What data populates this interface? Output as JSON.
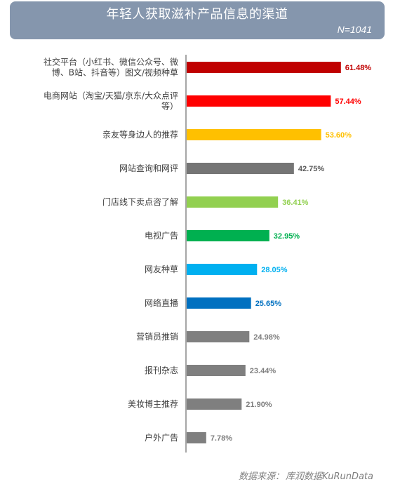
{
  "header": {
    "title": "年轻人获取滋补产品信息的渠道",
    "sample_size": "N=1041"
  },
  "footer": {
    "source_label": "数据来源：",
    "source_value": "库润数据KuRunData"
  },
  "chart_data": {
    "type": "bar",
    "orientation": "horizontal",
    "title": "年轻人获取滋补产品信息的渠道",
    "xlabel": "",
    "ylabel": "",
    "xlim": [
      0,
      70
    ],
    "grid": false,
    "legend": "none",
    "categories": [
      [
        "社交平台（小红书、微信公众号、微",
        "博、B站、抖音等）图文/视频种草"
      ],
      [
        "电商网站（淘宝/天猫/京东/大众点评",
        "等）"
      ],
      [
        "亲友等身边人的推荐"
      ],
      [
        "网站查询和网评"
      ],
      [
        "门店线下卖点咨了解"
      ],
      [
        "电视广告"
      ],
      [
        "网友种草"
      ],
      [
        "网络直播"
      ],
      [
        "营销员推销"
      ],
      [
        "报刊杂志"
      ],
      [
        "美妆博主推荐"
      ],
      [
        "户外广告"
      ]
    ],
    "values": [
      61.48,
      57.44,
      53.6,
      42.75,
      36.41,
      32.95,
      28.05,
      25.65,
      24.98,
      23.44,
      21.9,
      7.78
    ],
    "value_labels": [
      "61.48%",
      "57.44%",
      "53.60%",
      "42.75%",
      "36.41%",
      "32.95%",
      "28.05%",
      "25.65%",
      "24.98%",
      "23.44%",
      "21.90%",
      "7.78%"
    ],
    "colors": [
      "#c00000",
      "#ff0000",
      "#ffc000",
      "#757575",
      "#92d050",
      "#00b050",
      "#00b0f0",
      "#0070c0",
      "#7f7f7f",
      "#7f7f7f",
      "#7f7f7f",
      "#7f7f7f"
    ],
    "label_colors": [
      "#c00000",
      "#ff0000",
      "#ffc000",
      "#595959",
      "#92d050",
      "#00b050",
      "#00b0f0",
      "#0070c0",
      "#7f7f7f",
      "#7f7f7f",
      "#7f7f7f",
      "#7f7f7f"
    ]
  }
}
